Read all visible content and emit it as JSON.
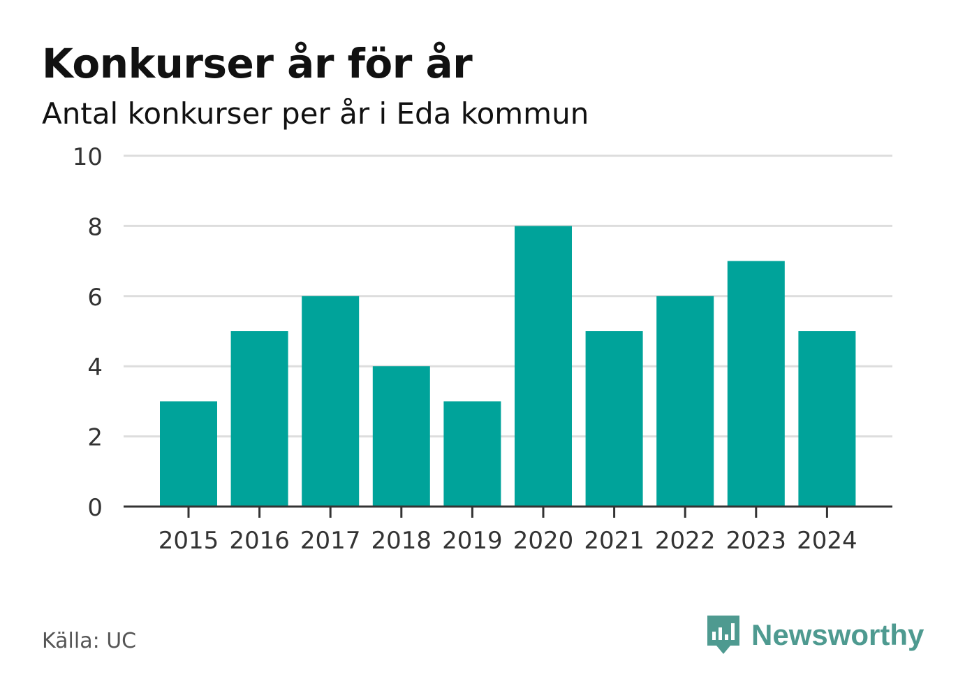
{
  "header": {
    "title": "Konkurser år för år",
    "subtitle": "Antal konkurser per år i Eda kommun"
  },
  "footer": {
    "source": "Källa: UC",
    "brand": "Newsworthy"
  },
  "colors": {
    "bar": "#00a39a",
    "grid": "#dddddd",
    "axis": "#333333",
    "brand": "#4e9a90"
  },
  "icons": {
    "brand_logo": "bar-chart-speech-bubble-icon"
  },
  "chart_data": {
    "type": "bar",
    "title": "Konkurser år för år",
    "subtitle": "Antal konkurser per år i Eda kommun",
    "xlabel": "",
    "ylabel": "",
    "categories": [
      "2015",
      "2016",
      "2017",
      "2018",
      "2019",
      "2020",
      "2021",
      "2022",
      "2023",
      "2024"
    ],
    "values": [
      3,
      5,
      6,
      4,
      3,
      8,
      5,
      6,
      7,
      5
    ],
    "ylim": [
      0,
      10
    ],
    "yticks": [
      "0",
      "2",
      "4",
      "6",
      "8",
      "10"
    ],
    "grid": true,
    "legend": "none"
  }
}
